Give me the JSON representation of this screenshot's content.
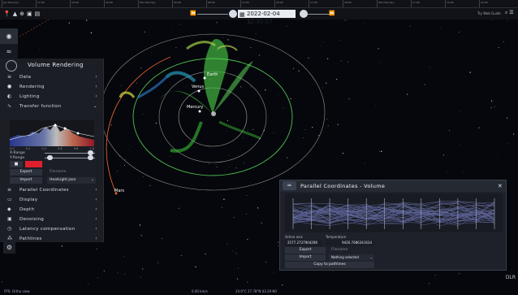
{
  "timebar": {
    "scale_labels": [
      "Jan February",
      "17:00",
      "19:00",
      "20:00",
      "Feb February",
      "00:00",
      "08:00",
      "12:00",
      "16:00",
      "17:00",
      "18:00",
      "Feb February",
      "17:00",
      "19:00",
      "22:00"
    ],
    "datetime": "2022-02-04 12:30:57",
    "tour_label": "Try Web Guide",
    "tool_icons": [
      "pin-icon",
      "mountain-icon",
      "compass-icon",
      "camera-icon",
      "layers-icon"
    ]
  },
  "left_strip": {
    "icons": [
      "pin-icon",
      "wave-icon"
    ]
  },
  "volume_panel": {
    "title": "Volume Rendering",
    "sections_top": [
      "Data",
      "Rendering",
      "Lighting",
      "Transfer function"
    ],
    "tf_axis": [
      "0.0",
      "0.2",
      "0.4",
      "0.6",
      "0.8",
      "1.0"
    ],
    "x_range_label": "X-Range",
    "y_range_label": "Y-Range",
    "export_label": "Export",
    "import_label": "Import",
    "filename_placeholder": "Filename",
    "selected_file": "HeatLight.json",
    "sections_bottom": [
      "Parallel Coordinates",
      "Display",
      "Depth",
      "Denoising",
      "Latency compensation",
      "Pathlines"
    ]
  },
  "planets": {
    "earth": "Earth",
    "venus": "Venus",
    "mercury": "Mercury",
    "mars": "Mars"
  },
  "parallel_coordinates": {
    "title": "Parallel Coordinates - Volume",
    "active_axis_label": "Active axis",
    "active_axis_value": "2577.2737904298",
    "temperature_label": "Temperature",
    "temperature_value": "9426.7686341634",
    "export_label": "Export",
    "import_label": "Import",
    "filename_placeholder": "Filename",
    "nothing_selected": "Nothing selected",
    "copy_label": "Copy to pathlines"
  },
  "footer": {
    "left": "FPS: Ortho view",
    "speed": "0.00 km/s",
    "location": "24.0°C 27.78°N 03.29 N0",
    "brand": "DLR"
  }
}
